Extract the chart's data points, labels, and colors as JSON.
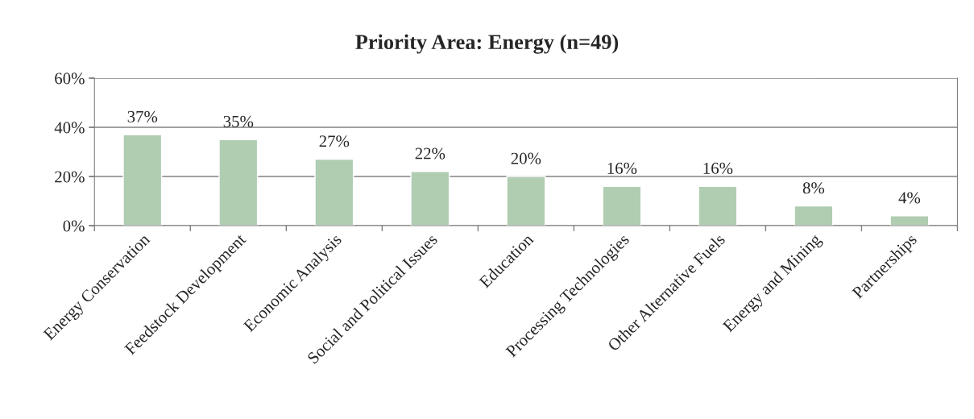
{
  "chart_data": {
    "type": "bar",
    "title": "Priority Area: Energy (n=49)",
    "categories": [
      "Energy Conservation",
      "Feedstock Development",
      "Economic Analysis",
      "Social and Political Issues",
      "Education",
      "Processing Technologies",
      "Other Alternative Fuels",
      "Energy and Mining",
      "Partnerships"
    ],
    "values": [
      37,
      35,
      27,
      22,
      20,
      16,
      16,
      8,
      4
    ],
    "value_labels": [
      "37%",
      "35%",
      "27%",
      "22%",
      "20%",
      "16%",
      "16%",
      "8%",
      "4%"
    ],
    "color": "#b0cdb2",
    "ylim": [
      0,
      60
    ],
    "yticks": [
      {
        "value": 0,
        "label": "0%"
      },
      {
        "value": 20,
        "label": "20%"
      },
      {
        "value": 40,
        "label": "40%"
      },
      {
        "value": 60,
        "label": "60%"
      }
    ],
    "grid": "y",
    "legend": false
  }
}
